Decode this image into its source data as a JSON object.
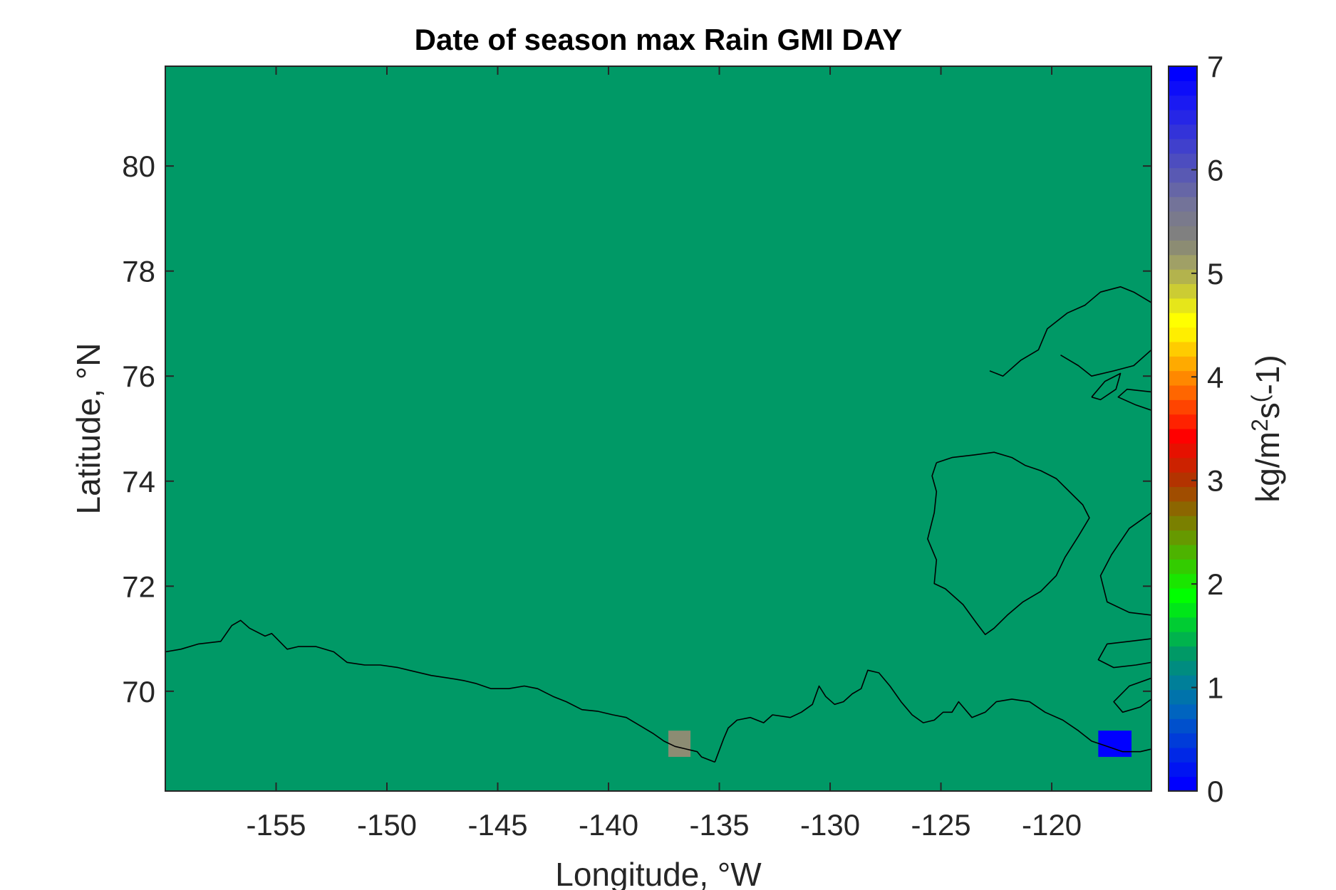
{
  "chart_data": {
    "type": "heatmap",
    "title": "Date of season max Rain GMI DAY",
    "xlabel": "Longitude, °W",
    "ylabel": "Latitude, °N",
    "xlim": [
      -160,
      -115.5
    ],
    "ylim": [
      68.1,
      81.9
    ],
    "x_ticks": [
      -155,
      -150,
      -145,
      -140,
      -135,
      -130,
      -125,
      -120
    ],
    "x_tick_labels": [
      "-155",
      "-150",
      "-145",
      "-140",
      "-135",
      "-130",
      "-125",
      "-120"
    ],
    "y_ticks": [
      70,
      72,
      74,
      76,
      78,
      80
    ],
    "y_tick_labels": [
      "70",
      "72",
      "74",
      "76",
      "78",
      "80"
    ],
    "background_value": 1.8,
    "background_color": "#009966",
    "cells": [
      {
        "lon_min": -137.3,
        "lon_max": -136.3,
        "lat_min": 68.75,
        "lat_max": 69.25,
        "value": 5.9,
        "color": "#8c8c73"
      },
      {
        "lon_min": -117.9,
        "lon_max": -116.4,
        "lat_min": 68.75,
        "lat_max": 69.25,
        "value": 0,
        "color": "#0000ff"
      }
    ],
    "colorbar": {
      "label": "kg/m^2s^(-1)",
      "label_parts": {
        "base": "kg/m",
        "sup1": "2",
        "mid": "s",
        "sup2": "(",
        "tail": "-1)"
      },
      "range": [
        0,
        7
      ],
      "ticks": [
        0,
        1,
        2,
        3,
        4,
        5,
        6,
        7
      ],
      "tick_labels": [
        "0",
        "1",
        "2",
        "3",
        "4",
        "5",
        "6",
        "7"
      ],
      "colors": [
        "#0000ff",
        "#0014f2",
        "#0028e6",
        "#003cd9",
        "#0050cc",
        "#0064bf",
        "#0073ab",
        "#007f99",
        "#008c80",
        "#009966",
        "#00b34d",
        "#00cc33",
        "#00e619",
        "#00ff00",
        "#1ae600",
        "#33cc00",
        "#4db300",
        "#669900",
        "#7a8000",
        "#8c6600",
        "#a04d00",
        "#b33300",
        "#cc2200",
        "#e61100",
        "#ff0000",
        "#ff2200",
        "#ff4400",
        "#ff6600",
        "#ff8800",
        "#ffaa00",
        "#ffcc00",
        "#ffee00",
        "#ffff00",
        "#e6e61a",
        "#cccc33",
        "#b3b34d",
        "#a0a066",
        "#8c8c73",
        "#808080",
        "#7a7a8c",
        "#737399",
        "#6666a6",
        "#5959b3",
        "#4d4dbf",
        "#4040cc",
        "#3333d9",
        "#2626e6",
        "#1a1af2",
        "#0d0df9",
        "#0000ff"
      ]
    }
  },
  "coastlines": [
    {
      "name": "alaska-coast",
      "points": [
        [
          -160,
          70.75
        ],
        [
          -159.3,
          70.8
        ],
        [
          -158.5,
          70.9
        ],
        [
          -157.5,
          70.95
        ],
        [
          -157,
          71.25
        ],
        [
          -156.6,
          71.35
        ],
        [
          -156.2,
          71.2
        ],
        [
          -155.5,
          71.05
        ],
        [
          -155.2,
          71.1
        ],
        [
          -154.5,
          70.8
        ],
        [
          -154,
          70.85
        ],
        [
          -153.2,
          70.85
        ],
        [
          -152.4,
          70.75
        ],
        [
          -151.8,
          70.55
        ],
        [
          -151,
          70.5
        ],
        [
          -150.3,
          70.5
        ],
        [
          -149.5,
          70.45
        ],
        [
          -148.8,
          70.38
        ],
        [
          -148,
          70.3
        ],
        [
          -147.2,
          70.25
        ],
        [
          -146.5,
          70.2
        ],
        [
          -146,
          70.15
        ],
        [
          -145.3,
          70.05
        ],
        [
          -144.5,
          70.05
        ],
        [
          -143.8,
          70.1
        ],
        [
          -143.2,
          70.05
        ],
        [
          -142.5,
          69.9
        ],
        [
          -141.9,
          69.8
        ],
        [
          -141.2,
          69.65
        ],
        [
          -140.5,
          69.62
        ],
        [
          -139.8,
          69.55
        ],
        [
          -139.2,
          69.5
        ],
        [
          -138.6,
          69.35
        ],
        [
          -138,
          69.2
        ],
        [
          -137.5,
          69.05
        ],
        [
          -137,
          68.95
        ],
        [
          -136.5,
          68.9
        ],
        [
          -136,
          68.85
        ],
        [
          -135.8,
          68.75
        ],
        [
          -135.2,
          68.65
        ]
      ]
    },
    {
      "name": "mackenzie-coast",
      "points": [
        [
          -135.2,
          68.65
        ],
        [
          -134.8,
          69.1
        ],
        [
          -134.6,
          69.3
        ],
        [
          -134.2,
          69.45
        ],
        [
          -133.6,
          69.5
        ],
        [
          -133,
          69.4
        ],
        [
          -132.6,
          69.55
        ],
        [
          -131.8,
          69.5
        ],
        [
          -131.3,
          69.6
        ],
        [
          -130.8,
          69.75
        ],
        [
          -130.5,
          70.1
        ],
        [
          -130.2,
          69.9
        ],
        [
          -129.8,
          69.75
        ],
        [
          -129.4,
          69.8
        ],
        [
          -129,
          69.95
        ],
        [
          -128.6,
          70.05
        ],
        [
          -128.3,
          70.4
        ],
        [
          -127.8,
          70.35
        ],
        [
          -127.3,
          70.1
        ],
        [
          -126.8,
          69.8
        ],
        [
          -126.3,
          69.55
        ],
        [
          -125.8,
          69.4
        ],
        [
          -125.3,
          69.45
        ],
        [
          -124.9,
          69.6
        ],
        [
          -124.5,
          69.6
        ],
        [
          -124.2,
          69.8
        ],
        [
          -123.6,
          69.5
        ],
        [
          -123,
          69.6
        ],
        [
          -122.5,
          69.8
        ],
        [
          -121.8,
          69.85
        ],
        [
          -121,
          69.8
        ],
        [
          -120.3,
          69.6
        ],
        [
          -119.5,
          69.45
        ],
        [
          -118.8,
          69.25
        ],
        [
          -118.2,
          69.05
        ],
        [
          -117.5,
          68.95
        ],
        [
          -116.8,
          68.85
        ],
        [
          -116,
          68.85
        ],
        [
          -115.5,
          68.9
        ]
      ]
    },
    {
      "name": "banks-island",
      "points": [
        [
          -125.2,
          74.35
        ],
        [
          -124.5,
          74.45
        ],
        [
          -123.5,
          74.5
        ],
        [
          -122.6,
          74.55
        ],
        [
          -121.8,
          74.45
        ],
        [
          -121.2,
          74.3
        ],
        [
          -120.5,
          74.2
        ],
        [
          -119.8,
          74.05
        ],
        [
          -119.2,
          73.8
        ],
        [
          -118.6,
          73.55
        ],
        [
          -118.3,
          73.3
        ],
        [
          -118.8,
          72.95
        ],
        [
          -119.4,
          72.55
        ],
        [
          -119.8,
          72.2
        ],
        [
          -120.5,
          71.9
        ],
        [
          -121.3,
          71.7
        ],
        [
          -122,
          71.45
        ],
        [
          -122.6,
          71.2
        ],
        [
          -123,
          71.08
        ],
        [
          -123.4,
          71.3
        ],
        [
          -124,
          71.65
        ],
        [
          -124.8,
          71.95
        ],
        [
          -125.3,
          72.05
        ],
        [
          -125.2,
          72.5
        ],
        [
          -125.6,
          72.9
        ],
        [
          -125.3,
          73.4
        ],
        [
          -125.2,
          73.8
        ],
        [
          -125.4,
          74.1
        ],
        [
          -125.2,
          74.35
        ]
      ]
    },
    {
      "name": "victoria-island-north",
      "points": [
        [
          -115.5,
          73.4
        ],
        [
          -116.5,
          73.1
        ],
        [
          -117.3,
          72.6
        ],
        [
          -117.8,
          72.2
        ],
        [
          -117.5,
          71.7
        ],
        [
          -116.5,
          71.5
        ],
        [
          -115.5,
          71.45
        ]
      ]
    },
    {
      "name": "victoria-island-south",
      "points": [
        [
          -115.5,
          70.25
        ],
        [
          -116.5,
          70.1
        ],
        [
          -117.2,
          69.8
        ],
        [
          -116.8,
          69.6
        ],
        [
          -116,
          69.7
        ],
        [
          -115.5,
          69.85
        ]
      ]
    },
    {
      "name": "victoria-island-west",
      "points": [
        [
          -115.5,
          71.0
        ],
        [
          -116.5,
          70.95
        ],
        [
          -117.5,
          70.9
        ],
        [
          -117.9,
          70.6
        ],
        [
          -117.2,
          70.45
        ],
        [
          -116.2,
          70.5
        ],
        [
          -115.5,
          70.55
        ]
      ]
    },
    {
      "name": "prince-patrick-island",
      "points": [
        [
          -122.8,
          76.1
        ],
        [
          -122.2,
          76.0
        ],
        [
          -121.4,
          76.3
        ],
        [
          -120.6,
          76.5
        ],
        [
          -120.2,
          76.9
        ],
        [
          -119.3,
          77.2
        ],
        [
          -118.5,
          77.35
        ],
        [
          -117.8,
          77.6
        ],
        [
          -116.9,
          77.7
        ],
        [
          -116.3,
          77.6
        ],
        [
          -115.5,
          77.4
        ]
      ]
    },
    {
      "name": "melville-coast",
      "points": [
        [
          -115.5,
          76.5
        ],
        [
          -116.3,
          76.2
        ],
        [
          -117.2,
          76.1
        ],
        [
          -118.2,
          76.0
        ],
        [
          -118.8,
          76.2
        ],
        [
          -119.6,
          76.4
        ]
      ]
    },
    {
      "name": "inlet-island",
      "points": [
        [
          -118.2,
          75.6
        ],
        [
          -117.6,
          75.9
        ],
        [
          -116.9,
          76.05
        ],
        [
          -117.1,
          75.75
        ],
        [
          -117.8,
          75.55
        ],
        [
          -118.2,
          75.6
        ]
      ]
    },
    {
      "name": "melville-peninsula",
      "points": [
        [
          -115.5,
          75.35
        ],
        [
          -116.2,
          75.45
        ],
        [
          -117.0,
          75.6
        ],
        [
          -116.6,
          75.75
        ],
        [
          -115.5,
          75.7
        ]
      ]
    }
  ]
}
